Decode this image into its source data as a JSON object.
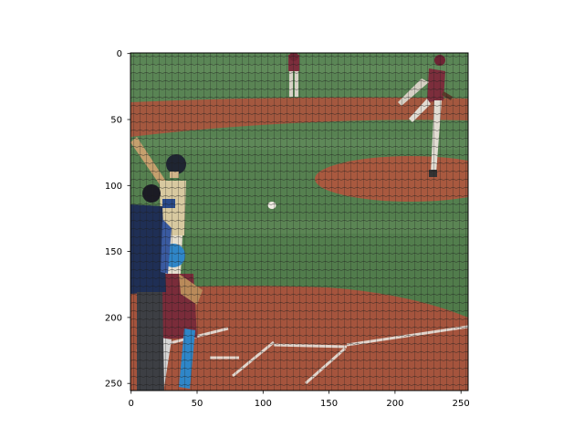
{
  "figure": {
    "background": "#ffffff",
    "axis_color": "#000000"
  },
  "image": {
    "description": "baseball game viewed through backstop netting: batter, catcher, umpire at home plate, pitcher on mound, fielder in background",
    "grass_color": "#4e7a48",
    "dirt_color": "#a2553e"
  },
  "axes": {
    "x": {
      "ticks": [
        "0",
        "50",
        "100",
        "150",
        "200",
        "250"
      ]
    },
    "y": {
      "ticks": [
        "0",
        "50",
        "100",
        "150",
        "200",
        "250"
      ]
    }
  }
}
